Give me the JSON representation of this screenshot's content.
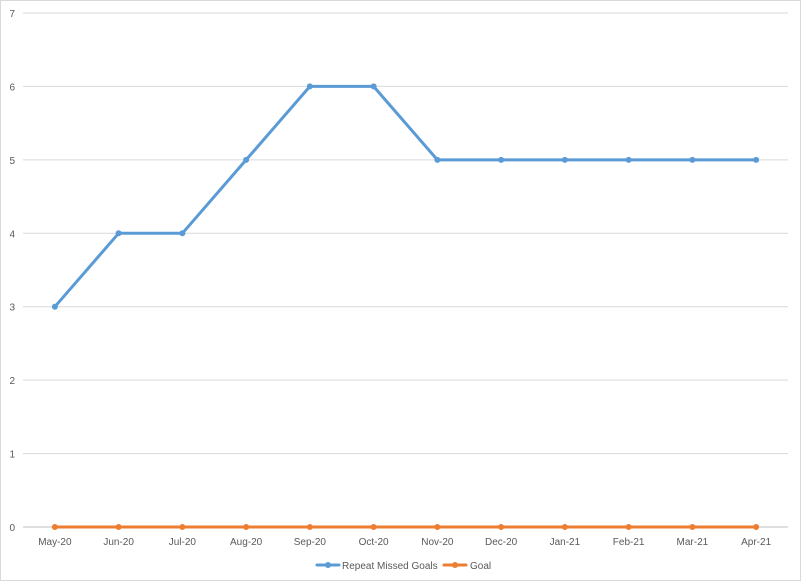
{
  "chart_data": {
    "type": "line",
    "categories": [
      "May-20",
      "Jun-20",
      "Jul-20",
      "Aug-20",
      "Sep-20",
      "Oct-20",
      "Nov-20",
      "Dec-20",
      "Jan-21",
      "Feb-21",
      "Mar-21",
      "Apr-21"
    ],
    "series": [
      {
        "name": "Repeat Missed Goals",
        "color": "#5b9bd5",
        "values": [
          3,
          4,
          4,
          5,
          6,
          6,
          5,
          5,
          5,
          5,
          5,
          5
        ]
      },
      {
        "name": "Goal",
        "color": "#ed7d31",
        "values": [
          0,
          0,
          0,
          0,
          0,
          0,
          0,
          0,
          0,
          0,
          0,
          0
        ]
      }
    ],
    "y_ticks": [
      "0",
      "1",
      "2",
      "3",
      "4",
      "5",
      "6",
      "7"
    ],
    "ylim": [
      0,
      7
    ],
    "grid": true,
    "legend_position": "bottom-center",
    "title": "",
    "xlabel": "",
    "ylabel": ""
  }
}
